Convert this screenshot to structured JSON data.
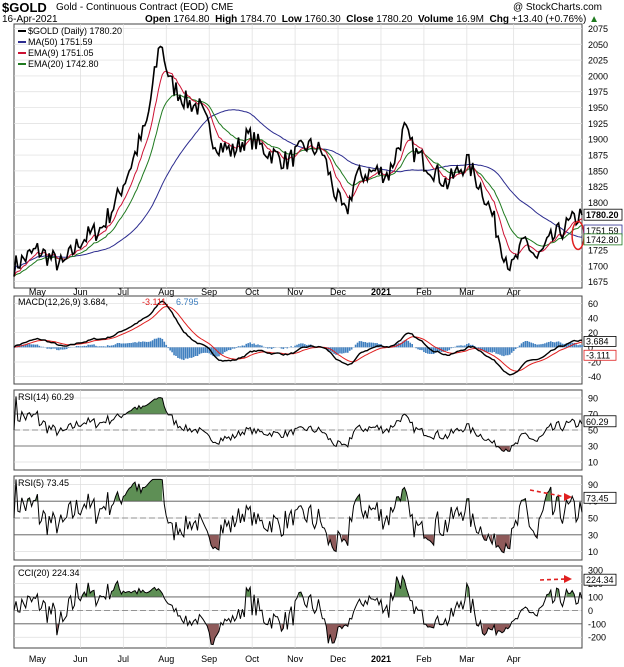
{
  "header": {
    "symbol": "$GOLD",
    "name": "Gold - Continuous Contract (EOD)",
    "exchange": "CME",
    "copyright": "@ StockCharts.com",
    "date": "16-Apr-2021",
    "open_label": "Open",
    "open": "1764.80",
    "high_label": "High",
    "high": "1784.70",
    "low_label": "Low",
    "low": "1760.30",
    "close_label": "Close",
    "close": "1780.20",
    "volume_label": "Volume",
    "volume": "16.9M",
    "chg_label": "Chg",
    "chg": "+13.40 (+0.76%)",
    "chg_arrow": "▲"
  },
  "colors": {
    "price": "#000000",
    "ma50": "#2c2c8f",
    "ema9": "#cc1133",
    "ema20": "#1f7a1f",
    "macd": "#000000",
    "signal": "#e02020",
    "histogram": "#3f7fbf",
    "rsi_over": "#5e8f55",
    "rsi_under": "#8f5a5a",
    "arrow": "#e02020",
    "grid": "#dddddd"
  },
  "chart_data": [
    {
      "type": "line",
      "panel": "price",
      "legend": [
        "$GOLD (Daily) 1780.20",
        "MA(50) 1751.59",
        "EMA(9) 1751.05",
        "EMA(20) 1742.80"
      ],
      "y_ticks": [
        1675,
        1700,
        1725,
        1750,
        1780,
        1800,
        1825,
        1850,
        1875,
        1900,
        1925,
        1950,
        1975,
        2000,
        2025,
        2050,
        2075
      ],
      "ylim": [
        1665,
        2082
      ],
      "x_labels": [
        "May",
        "Jun",
        "Jul",
        "Aug",
        "Sep",
        "Oct",
        "Nov",
        "Dec",
        "2021",
        "Feb",
        "Mar",
        "Apr"
      ],
      "price_key_points": [
        [
          0,
          1700
        ],
        [
          12,
          1725
        ],
        [
          25,
          1700
        ],
        [
          34,
          1740
        ],
        [
          45,
          1760
        ],
        [
          52,
          1800
        ],
        [
          60,
          1860
        ],
        [
          68,
          1925
        ],
        [
          75,
          2055
        ],
        [
          80,
          1990
        ],
        [
          88,
          1960
        ],
        [
          95,
          1950
        ],
        [
          103,
          1895
        ],
        [
          112,
          1880
        ],
        [
          120,
          1905
        ],
        [
          130,
          1880
        ],
        [
          140,
          1865
        ],
        [
          150,
          1890
        ],
        [
          158,
          1880
        ],
        [
          165,
          1810
        ],
        [
          170,
          1780
        ],
        [
          175,
          1840
        ],
        [
          185,
          1850
        ],
        [
          192,
          1845
        ],
        [
          200,
          1915
        ],
        [
          205,
          1880
        ],
        [
          212,
          1860
        ],
        [
          222,
          1830
        ],
        [
          232,
          1865
        ],
        [
          240,
          1820
        ],
        [
          245,
          1780
        ],
        [
          250,
          1730
        ],
        [
          255,
          1695
        ],
        [
          262,
          1740
        ],
        [
          268,
          1710
        ],
        [
          275,
          1740
        ],
        [
          282,
          1760
        ],
        [
          290,
          1780
        ]
      ],
      "price_labels": {
        "last": "1780.20",
        "ma50": "1751.59",
        "ema": "1742.80"
      },
      "series": [
        {
          "name": "$GOLD (Daily) 1780.20"
        },
        {
          "name": "MA(50) 1751.59"
        },
        {
          "name": "EMA(9) 1751.05"
        },
        {
          "name": "EMA(20) 1742.80"
        }
      ]
    },
    {
      "type": "line",
      "panel": "macd",
      "legend": [
        "MACD(12,26,9)",
        "3.684",
        "-3.111",
        "6.795"
      ],
      "y_ticks": [
        60,
        40,
        20,
        0,
        -20,
        -40
      ],
      "ylim": [
        -50,
        70
      ],
      "value_labels": [
        "3.684",
        "-3.111"
      ],
      "series": [
        {
          "name": "MACD(12,26,9)"
        }
      ]
    },
    {
      "type": "line",
      "panel": "rsi14",
      "legend": [
        "RSI(14) 60.29"
      ],
      "y_ticks": [
        90,
        70,
        50,
        30,
        10
      ],
      "ylim": [
        0,
        100
      ],
      "value_label": "60.29",
      "series": [
        {
          "name": "RSI(14) 60.29"
        }
      ]
    },
    {
      "type": "line",
      "panel": "rsi5",
      "legend": [
        "RSI(5) 73.45"
      ],
      "y_ticks": [
        90,
        70,
        50,
        30,
        10
      ],
      "ylim": [
        0,
        100
      ],
      "value_label": "73.45",
      "series": [
        {
          "name": "RSI(5) 73.45"
        }
      ]
    },
    {
      "type": "line",
      "panel": "cci",
      "legend": [
        "CCI(20) 224.34"
      ],
      "y_ticks": [
        300,
        200,
        100,
        0,
        -100,
        -200
      ],
      "ylim": [
        -280,
        330
      ],
      "value_label": "224.34",
      "series": [
        {
          "name": "CCI(20) 224.34"
        }
      ]
    }
  ],
  "x_axis": [
    "May",
    "Jun",
    "Jul",
    "Aug",
    "Sep",
    "Oct",
    "Nov",
    "Dec",
    "2021",
    "Feb",
    "Mar",
    "Apr"
  ]
}
